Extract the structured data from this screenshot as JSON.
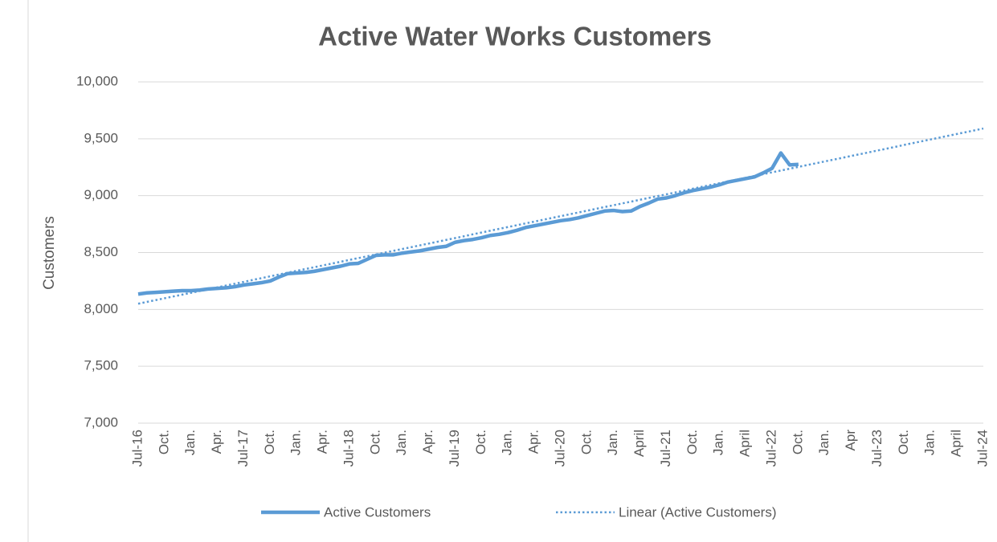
{
  "chart_data": {
    "type": "line",
    "title": "Active Water Works Customers",
    "y_label": "Customers",
    "categories": [
      "Jul-16",
      null,
      null,
      "Oct.",
      null,
      null,
      "Jan.",
      null,
      null,
      "Apr.",
      null,
      null,
      "Jul-17",
      null,
      null,
      "Oct.",
      null,
      null,
      "Jan.",
      null,
      null,
      "Apr.",
      null,
      null,
      "Jul-18",
      null,
      null,
      "Oct.",
      null,
      null,
      "Jan.",
      null,
      null,
      "Apr.",
      null,
      null,
      "Jul-19",
      null,
      null,
      "Oct.",
      null,
      null,
      "Jan.",
      null,
      null,
      "Apr.",
      null,
      null,
      "Jul-20",
      null,
      null,
      "Oct.",
      null,
      null,
      "Jan.",
      null,
      null,
      "April",
      null,
      null,
      "Jul-21",
      null,
      null,
      "Oct.",
      null,
      null,
      "Jan.",
      null,
      null,
      "April",
      null,
      null,
      "Jul-22",
      null,
      null,
      "Oct.",
      null,
      null,
      "Jan.",
      null,
      null,
      "Apr",
      null,
      null,
      "Jul-23",
      null,
      null,
      "Oct.",
      null,
      null,
      "Jan.",
      null,
      null,
      "April",
      null,
      null,
      "Jul-24"
    ],
    "series": [
      {
        "name": "Active Customers",
        "color": "#5b9bd5",
        "style": "solid",
        "values": [
          8135,
          8145,
          8150,
          8155,
          8160,
          8165,
          8165,
          8170,
          8180,
          8185,
          8190,
          8200,
          8215,
          8225,
          8235,
          8250,
          8285,
          8315,
          8320,
          8325,
          8335,
          8350,
          8365,
          8380,
          8400,
          8405,
          8440,
          8475,
          8480,
          8480,
          8495,
          8505,
          8515,
          8530,
          8545,
          8555,
          8590,
          8605,
          8615,
          8630,
          8650,
          8660,
          8675,
          8695,
          8720,
          8735,
          8750,
          8765,
          8780,
          8790,
          8805,
          8825,
          8845,
          8865,
          8870,
          8860,
          8865,
          8905,
          8935,
          8970,
          8980,
          9000,
          9025,
          9045,
          9060,
          9075,
          9095,
          9120,
          9135,
          9150,
          9165,
          9200,
          9240,
          9375,
          9270,
          9275,
          null,
          null,
          null,
          null,
          null,
          null,
          null,
          null,
          null,
          null,
          null,
          null,
          null,
          null,
          null,
          null,
          null,
          null,
          null,
          null,
          null
        ]
      },
      {
        "name": "Linear (Active Customers)",
        "color": "#5b9bd5",
        "style": "dotted",
        "values": [
          8050,
          8066,
          8082,
          8098,
          8114,
          8130,
          8146,
          8162,
          8178,
          8194,
          8210,
          8226,
          8242,
          8259,
          8275,
          8291,
          8307,
          8323,
          8339,
          8355,
          8371,
          8387,
          8403,
          8419,
          8435,
          8451,
          8467,
          8483,
          8499,
          8515,
          8531,
          8547,
          8563,
          8579,
          8595,
          8611,
          8627,
          8643,
          8660,
          8676,
          8692,
          8708,
          8724,
          8740,
          8756,
          8772,
          8788,
          8804,
          8820,
          8836,
          8852,
          8868,
          8884,
          8900,
          8916,
          8932,
          8948,
          8964,
          8980,
          8996,
          9012,
          9028,
          9044,
          9061,
          9077,
          9093,
          9109,
          9125,
          9141,
          9157,
          9173,
          9189,
          9205,
          9221,
          9237,
          9253,
          9269,
          9285,
          9301,
          9317,
          9333,
          9349,
          9365,
          9381,
          9397,
          9413,
          9429,
          9446,
          9462,
          9478,
          9494,
          9510,
          9526,
          9542,
          9558,
          9574,
          9590
        ]
      }
    ],
    "ylim": [
      7000,
      10000
    ],
    "yticks": [
      {
        "value": 7000,
        "label": "7,000"
      },
      {
        "value": 7500,
        "label": "7,500"
      },
      {
        "value": 8000,
        "label": "8,000"
      },
      {
        "value": 8500,
        "label": "8,500"
      },
      {
        "value": 9000,
        "label": "9,000"
      },
      {
        "value": 9500,
        "label": "9,500"
      },
      {
        "value": 10000,
        "label": "10,000"
      }
    ],
    "grid": true,
    "legend": "bottom"
  }
}
